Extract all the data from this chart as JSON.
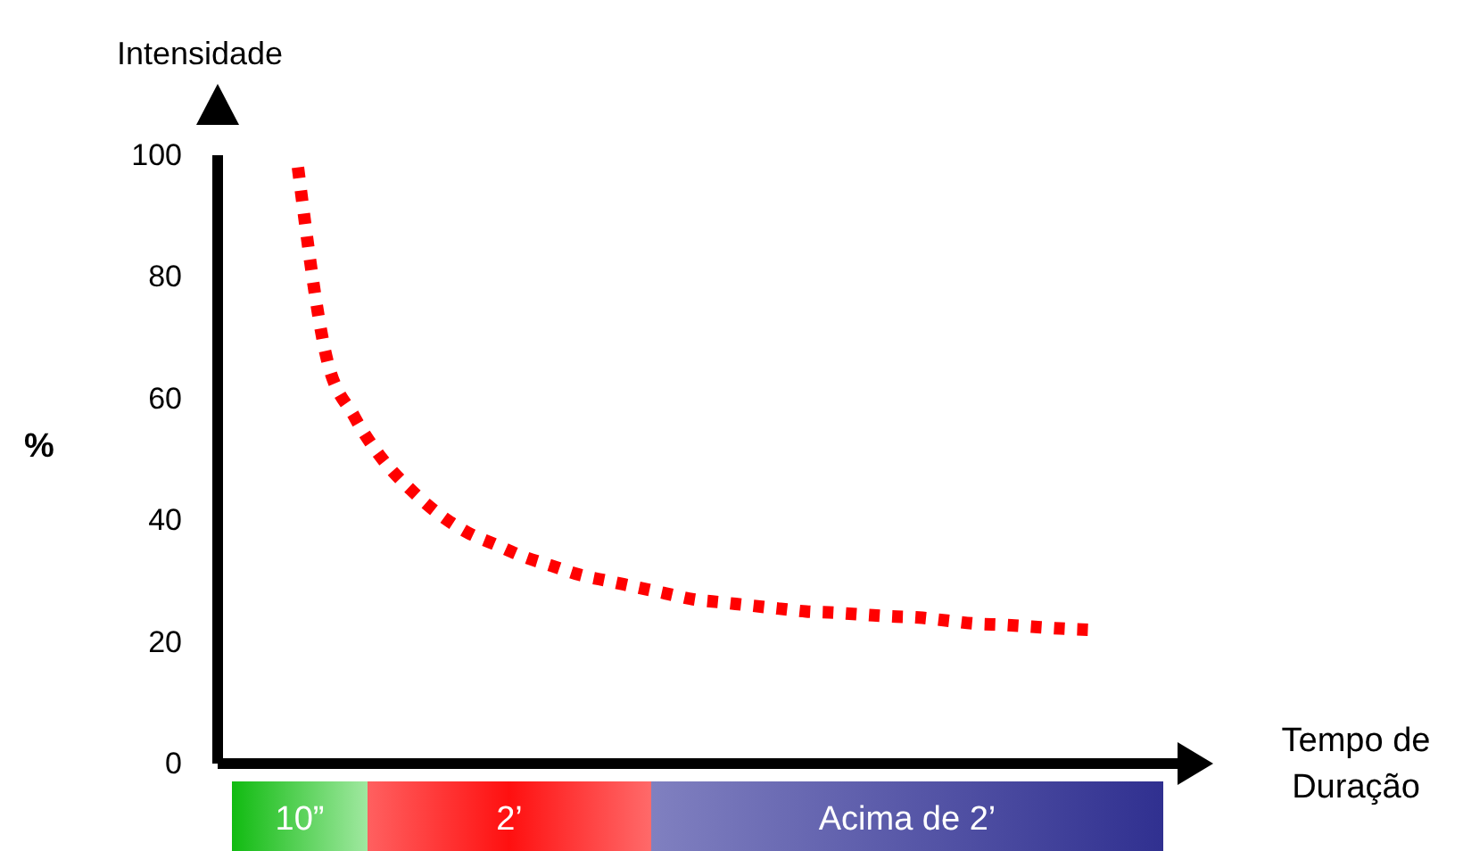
{
  "chart_data": {
    "type": "line",
    "title": "Intensidade",
    "ylabel": "%",
    "categories": [
      null,
      null,
      null,
      null,
      null,
      null,
      null,
      null,
      null,
      null,
      null,
      null,
      null,
      null,
      null,
      null,
      null,
      null,
      null,
      null,
      null,
      null,
      null,
      null,
      null,
      null,
      null,
      null,
      null
    ],
    "series": [
      {
        "color": "#ff0000",
        "values": [
          98,
          67,
          57,
          50,
          45,
          41,
          38,
          36,
          34,
          32.5,
          31,
          30,
          29,
          28,
          27,
          26.5,
          26,
          25.5,
          25,
          24.8,
          24.5,
          24.2,
          24,
          23.5,
          23,
          22.8,
          22.5,
          22.2,
          22
        ]
      }
    ],
    "ylim": [
      0,
      100
    ],
    "yticks": [
      0,
      20,
      40,
      60,
      80,
      100
    ],
    "line_style": "dotted",
    "marker": "none",
    "tick_labels": "y",
    "annotations": [
      "10”",
      "2’",
      "Acima de 2’",
      "Tempo de Duração"
    ]
  }
}
